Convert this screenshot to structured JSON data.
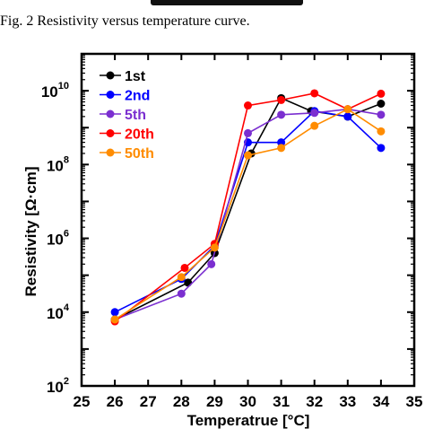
{
  "caption": "Fig. 2 Resistivity versus temperature curve.",
  "chart_data": {
    "type": "line",
    "xlabel": "Temperatrue [°C]",
    "ylabel": "Resistivity [Ω·cm]",
    "xlim": [
      25,
      35
    ],
    "ylim_log10": [
      2,
      11
    ],
    "y_scale": "log",
    "x_ticks": [
      25,
      26,
      27,
      28,
      29,
      30,
      31,
      32,
      33,
      34,
      35
    ],
    "y_ticks": [
      {
        "base": "10",
        "exp": "2",
        "value": 2
      },
      {
        "base": "10",
        "exp": "4",
        "value": 4
      },
      {
        "base": "10",
        "exp": "6",
        "value": 6
      },
      {
        "base": "10",
        "exp": "8",
        "value": 8
      },
      {
        "base": "10",
        "exp": "10",
        "value": 10
      }
    ],
    "legend_position": "top-left",
    "series": [
      {
        "name": "1st",
        "color": "#000000",
        "x": [
          26,
          28.2,
          29,
          30.1,
          31,
          31.9,
          33,
          34
        ],
        "log10_y": [
          3.8,
          4.8,
          5.6,
          8.3,
          9.8,
          9.45,
          9.3,
          9.65
        ]
      },
      {
        "name": "2nd",
        "color": "#0000ff",
        "x": [
          26,
          28,
          29,
          30,
          31,
          32,
          33,
          34
        ],
        "log10_y": [
          4.0,
          4.9,
          5.8,
          8.6,
          8.6,
          9.45,
          9.3,
          8.45
        ]
      },
      {
        "name": "5th",
        "color": "#7b2fd0",
        "x": [
          26,
          28,
          28.9,
          30,
          31,
          32,
          33,
          34
        ],
        "log10_y": [
          3.8,
          4.5,
          5.3,
          8.85,
          9.35,
          9.4,
          9.5,
          9.35
        ]
      },
      {
        "name": "20th",
        "color": "#ff0000",
        "x": [
          26,
          28.1,
          29,
          30,
          31,
          32,
          33,
          34
        ],
        "log10_y": [
          3.75,
          5.2,
          5.85,
          9.6,
          9.75,
          9.93,
          9.5,
          9.92
        ]
      },
      {
        "name": "50th",
        "color": "#ff8c00",
        "x": [
          26,
          28,
          29,
          30,
          31,
          32,
          33,
          34
        ],
        "log10_y": [
          3.8,
          4.95,
          5.75,
          8.25,
          8.45,
          9.05,
          9.5,
          8.9
        ]
      }
    ]
  }
}
